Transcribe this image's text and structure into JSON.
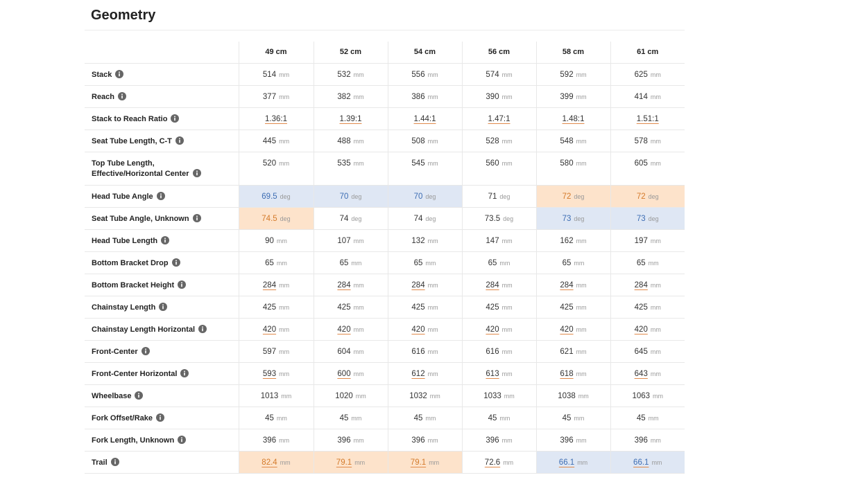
{
  "header": {
    "title": "Geometry"
  },
  "table": {
    "columns": [
      "49 cm",
      "52 cm",
      "54 cm",
      "56 cm",
      "58 cm",
      "61 cm"
    ],
    "rows": [
      {
        "label": "Stack",
        "unit": "mm",
        "values": [
          514,
          532,
          556,
          574,
          592,
          625
        ]
      },
      {
        "label": "Reach",
        "unit": "mm",
        "values": [
          377,
          382,
          386,
          390,
          399,
          414
        ]
      },
      {
        "label": "Stack to Reach Ratio",
        "values": [
          "1.36:1",
          "1.39:1",
          "1.44:1",
          "1.47:1",
          "1.48:1",
          "1.51:1"
        ],
        "underlined": true
      },
      {
        "label": "Seat Tube Length, C-T",
        "unit": "mm",
        "values": [
          445,
          488,
          508,
          528,
          548,
          578
        ]
      },
      {
        "label": "Top Tube Length, Effective/Horizontal Center",
        "unit": "mm",
        "values": [
          520,
          535,
          545,
          560,
          580,
          605
        ]
      },
      {
        "label": "Head Tube Angle",
        "unit": "deg",
        "values": [
          69.5,
          70,
          70,
          71,
          72,
          72
        ],
        "highlight": [
          "blue",
          "blue",
          "blue",
          null,
          "orange",
          "orange"
        ]
      },
      {
        "label": "Seat Tube Angle, Unknown",
        "unit": "deg",
        "values": [
          74.5,
          74,
          74,
          73.5,
          73,
          73
        ],
        "highlight": [
          "orange",
          null,
          null,
          null,
          "blue",
          "blue"
        ]
      },
      {
        "label": "Head Tube Length",
        "unit": "mm",
        "values": [
          90,
          107,
          132,
          147,
          162,
          197
        ]
      },
      {
        "label": "Bottom Bracket Drop",
        "unit": "mm",
        "values": [
          65,
          65,
          65,
          65,
          65,
          65
        ]
      },
      {
        "label": "Bottom Bracket Height",
        "unit": "mm",
        "values": [
          284,
          284,
          284,
          284,
          284,
          284
        ],
        "underlined": true
      },
      {
        "label": "Chainstay Length",
        "unit": "mm",
        "values": [
          425,
          425,
          425,
          425,
          425,
          425
        ]
      },
      {
        "label": "Chainstay Length Horizontal",
        "unit": "mm",
        "values": [
          420,
          420,
          420,
          420,
          420,
          420
        ],
        "underlined": true
      },
      {
        "label": "Front-Center",
        "unit": "mm",
        "values": [
          597,
          604,
          616,
          616,
          621,
          645
        ]
      },
      {
        "label": "Front-Center Horizontal",
        "unit": "mm",
        "values": [
          593,
          600,
          612,
          613,
          618,
          643
        ],
        "underlined": true
      },
      {
        "label": "Wheelbase",
        "unit": "mm",
        "values": [
          1013,
          1020,
          1032,
          1033,
          1038,
          1063
        ]
      },
      {
        "label": "Fork Offset/Rake",
        "unit": "mm",
        "values": [
          45,
          45,
          45,
          45,
          45,
          45
        ]
      },
      {
        "label": "Fork Length, Unknown",
        "unit": "mm",
        "values": [
          396,
          396,
          396,
          396,
          396,
          396
        ]
      },
      {
        "label": "Trail",
        "unit": "mm",
        "values": [
          82.4,
          79.1,
          79.1,
          72.6,
          66.1,
          66.1
        ],
        "underlined": true,
        "highlight": [
          "orange",
          "orange",
          "orange",
          null,
          "blue",
          "blue"
        ]
      }
    ]
  }
}
